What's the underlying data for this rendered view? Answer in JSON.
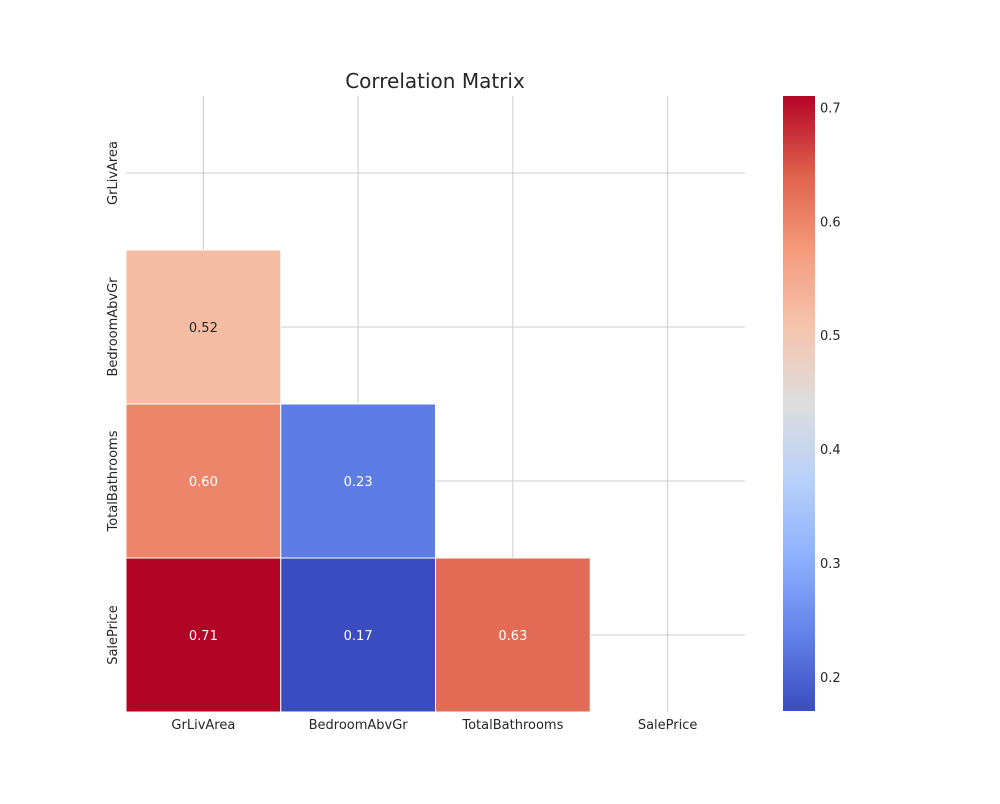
{
  "chart_data": {
    "type": "heatmap",
    "title": "Correlation Matrix",
    "xlabel": "",
    "ylabel": "",
    "x_labels": [
      "GrLivArea",
      "BedroomAbvGr",
      "TotalBathrooms",
      "SalePrice"
    ],
    "y_labels": [
      "GrLivArea",
      "BedroomAbvGr",
      "TotalBathrooms",
      "SalePrice"
    ],
    "mask": "upper-triangle-and-diagonal",
    "matrix": [
      [
        null,
        null,
        null,
        null
      ],
      [
        0.52,
        null,
        null,
        null
      ],
      [
        0.6,
        0.23,
        null,
        null
      ],
      [
        0.71,
        0.17,
        0.63,
        null
      ]
    ],
    "annotations": true,
    "colormap": "coolwarm",
    "colorbar": {
      "min": 0.17,
      "max": 0.71,
      "ticks": [
        "0.2",
        "0.3",
        "0.4",
        "0.5",
        "0.6",
        "0.7"
      ]
    },
    "grid": true,
    "colors": {
      "grid": "#cccccc",
      "text_dark": "#262626",
      "text_light": "#ffffff",
      "background": "#ffffff"
    }
  }
}
